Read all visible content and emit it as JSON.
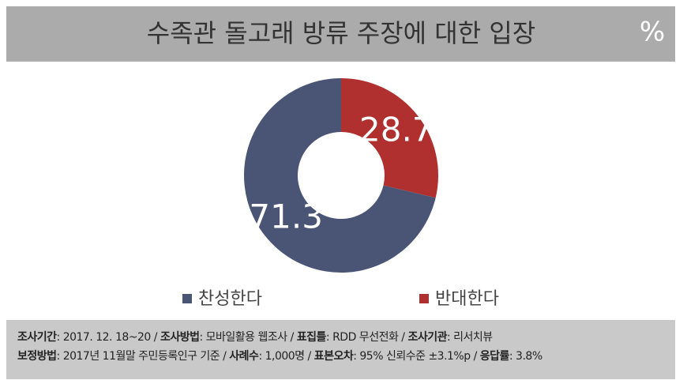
{
  "chart_data": {
    "type": "pie",
    "title": "수족관 돌고래 방류 주장에 대한 입장",
    "unit": "%",
    "categories": [
      "찬성한다",
      "반대한다"
    ],
    "values": [
      71.3,
      28.7
    ],
    "colors": [
      "#4a5576",
      "#b0302f"
    ],
    "donut": true
  },
  "footer": {
    "separator": "/",
    "lines": [
      [
        {
          "label": "조사기간",
          "value": ": 2017. 12. 18~20"
        },
        {
          "label": "조사방법",
          "value": ": 모바일활용 웹조사"
        },
        {
          "label": "표집틀",
          "value": ": RDD 무선전화"
        },
        {
          "label": "조사기관",
          "value": ": 리서치뷰"
        }
      ],
      [
        {
          "label": "보정방법",
          "value": ": 2017년 11월말 주민등록인구 기준"
        },
        {
          "label": "사례수",
          "value": ": 1,000명"
        },
        {
          "label": "표본오차",
          "value": ": 95% 신뢰수준 ±3.1%p"
        },
        {
          "label": "응답률",
          "value": ": 3.8%"
        }
      ]
    ]
  }
}
